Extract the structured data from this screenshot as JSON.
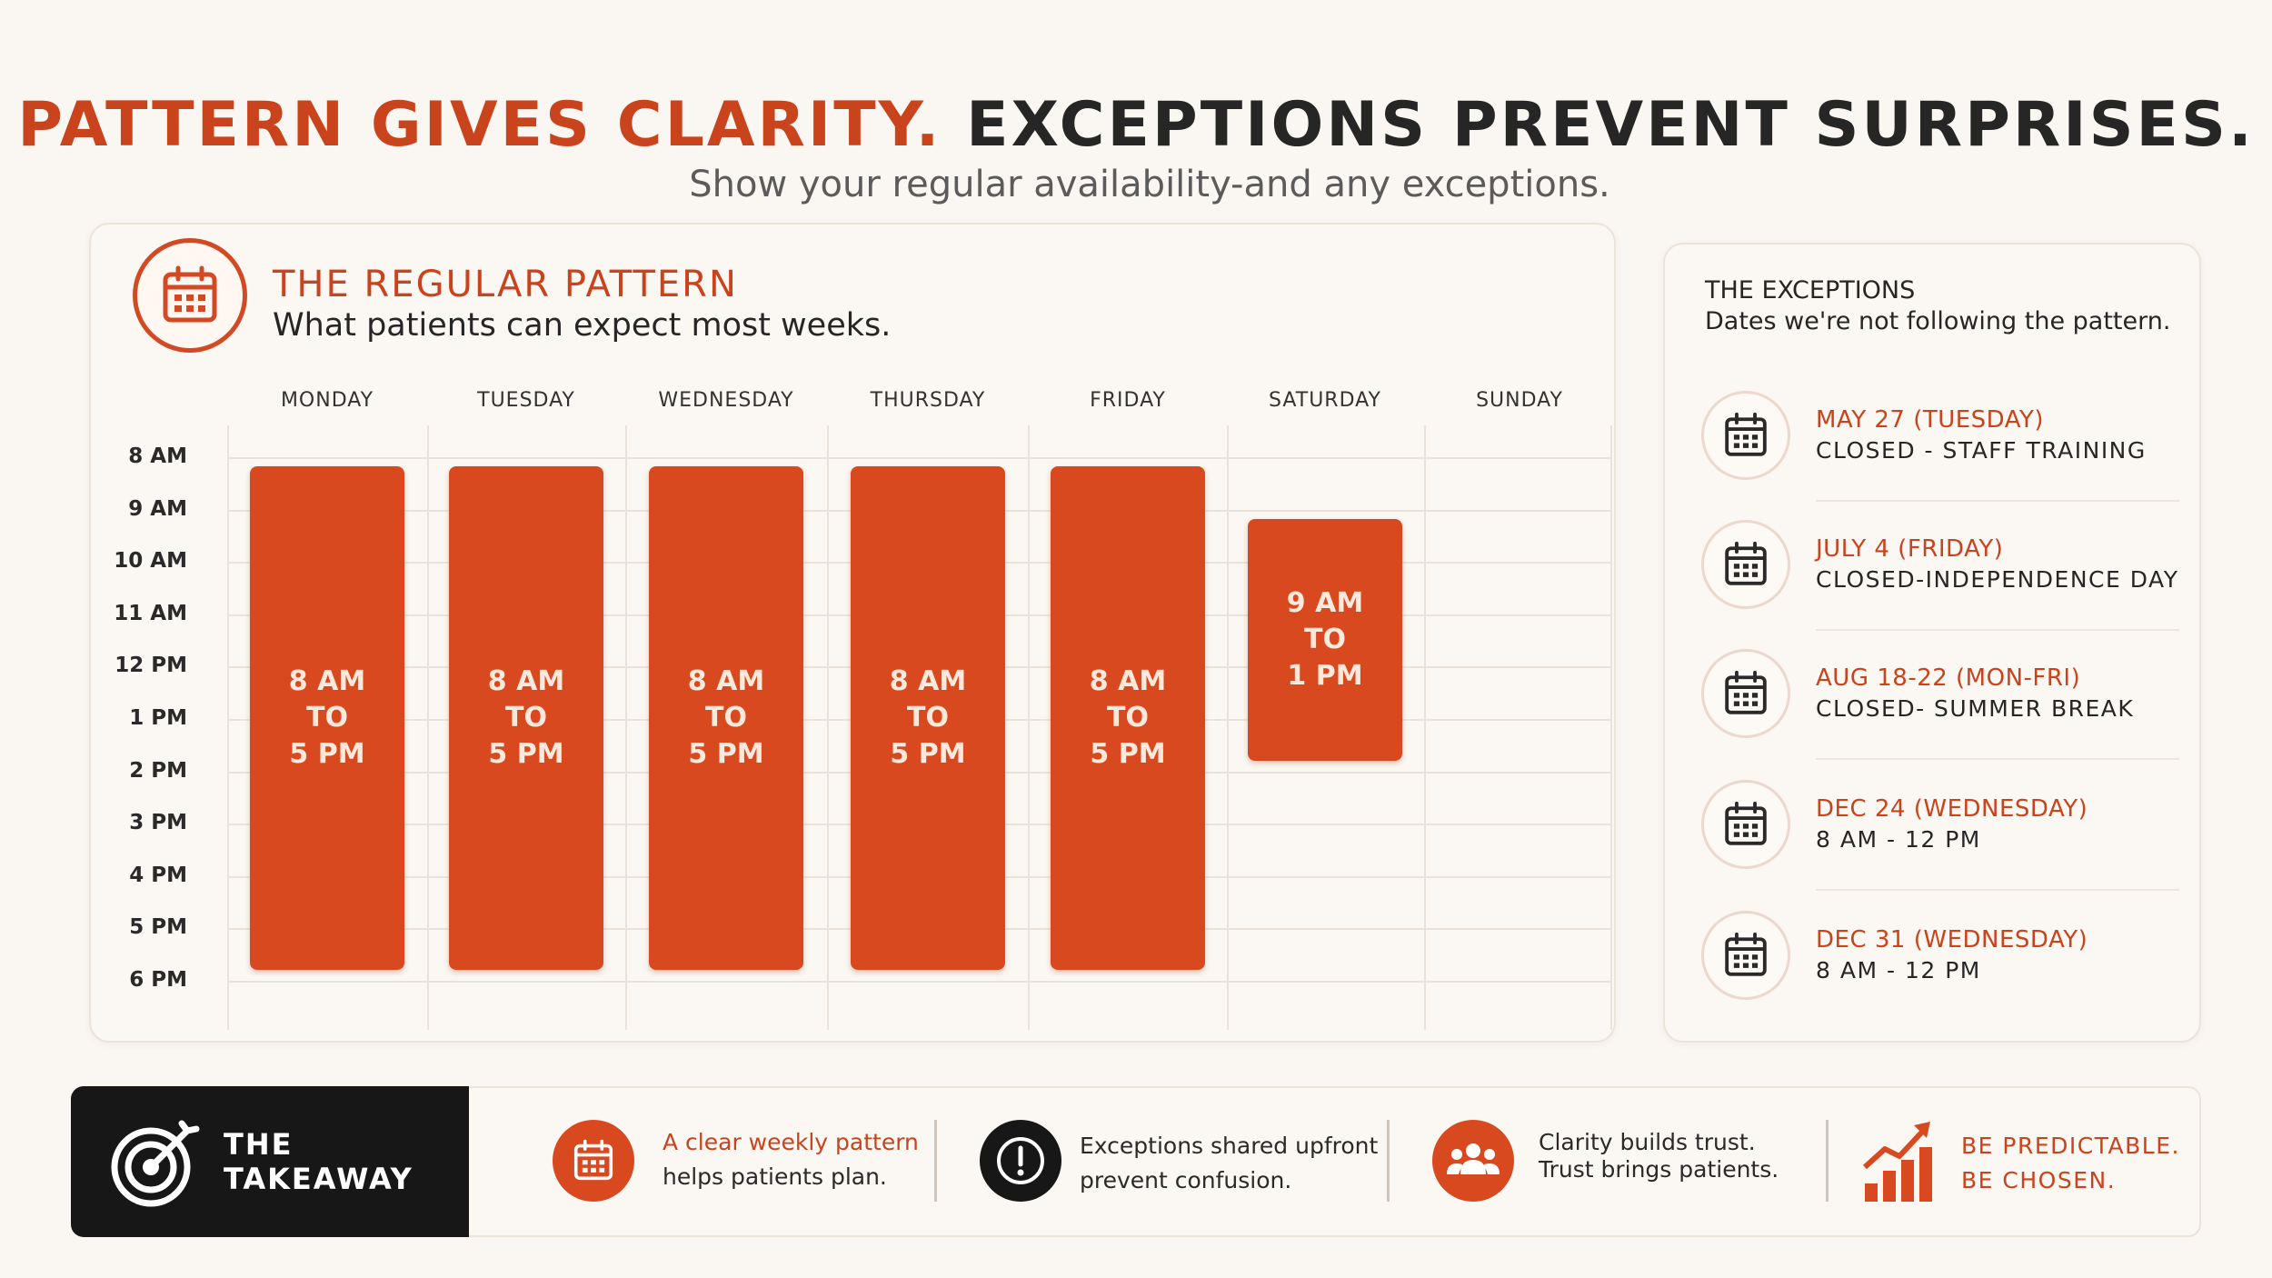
{
  "header": {
    "headline_accent": "PATTERN GIVES CLARITY.",
    "headline_dark": "EXCEPTIONS PREVENT SURPRISES.",
    "subheadline": "Show your regular availability-and any exceptions."
  },
  "pattern": {
    "title": "THE REGULAR PATTERN",
    "subtitle": "What patients can expect most weeks.",
    "icon": "calendar-icon",
    "days": [
      "MONDAY",
      "TUESDAY",
      "WEDNESDAY",
      "THURSDAY",
      "FRIDAY",
      "SATURDAY",
      "SUNDAY"
    ],
    "times": [
      "8 AM",
      "9 AM",
      "10 AM",
      "11 AM",
      "12 PM",
      "1 PM",
      "2 PM",
      "3 PM",
      "4 PM",
      "5 PM",
      "6 PM"
    ],
    "schedule": [
      {
        "day": "MONDAY",
        "start": 8,
        "end": 17,
        "line1": "8 AM",
        "line2": "TO",
        "line3": "5 PM"
      },
      {
        "day": "TUESDAY",
        "start": 8,
        "end": 17,
        "line1": "8 AM",
        "line2": "TO",
        "line3": "5 PM"
      },
      {
        "day": "WEDNESDAY",
        "start": 8,
        "end": 17,
        "line1": "8 AM",
        "line2": "TO",
        "line3": "5 PM"
      },
      {
        "day": "THURSDAY",
        "start": 8,
        "end": 17,
        "line1": "8 AM",
        "line2": "TO",
        "line3": "5 PM"
      },
      {
        "day": "FRIDAY",
        "start": 8,
        "end": 17,
        "line1": "8 AM",
        "line2": "TO",
        "line3": "5 PM"
      },
      {
        "day": "SATURDAY",
        "start": 9,
        "end": 13,
        "line1": "9 AM",
        "line2": "TO",
        "line3": "1 PM"
      }
    ],
    "block_color": "#d9491f"
  },
  "exceptions": {
    "title": "THE EXCEPTIONS",
    "subtitle": "Dates we're not following the pattern.",
    "items": [
      {
        "date": "MAY 27 (TUESDAY)",
        "detail": "CLOSED - STAFF TRAINING",
        "icon": "calendar-icon"
      },
      {
        "date": "JULY 4 (FRIDAY)",
        "detail": "CLOSED-INDEPENDENCE DAY",
        "icon": "calendar-icon"
      },
      {
        "date": "AUG 18-22 (MON-FRI)",
        "detail": "CLOSED- SUMMER BREAK",
        "icon": "calendar-icon"
      },
      {
        "date": "DEC 24 (WEDNESDAY)",
        "detail": "8 AM - 12 PM",
        "icon": "calendar-icon"
      },
      {
        "date": "DEC 31 (WEDNESDAY)",
        "detail": "8 AM - 12 PM",
        "icon": "calendar-icon"
      }
    ]
  },
  "takeaway": {
    "label": "THE TAKEAWAY",
    "icon": "target-icon",
    "points": [
      {
        "icon": "calendar-icon",
        "accent": "A clear weekly pattern",
        "text": "helps patients plan."
      },
      {
        "icon": "exclamation-icon",
        "line1": "Exceptions shared upfront",
        "line2": "prevent confusion."
      },
      {
        "icon": "people-icon",
        "line1": "Clarity builds trust.",
        "line2": "Trust brings patients."
      },
      {
        "icon": "growth-chart-icon",
        "line1": "BE PREDICTABLE.",
        "line2": "BE CHOSEN."
      }
    ]
  },
  "colors": {
    "accent": "#c9431d",
    "dark": "#171717",
    "background": "#faf6f1"
  }
}
